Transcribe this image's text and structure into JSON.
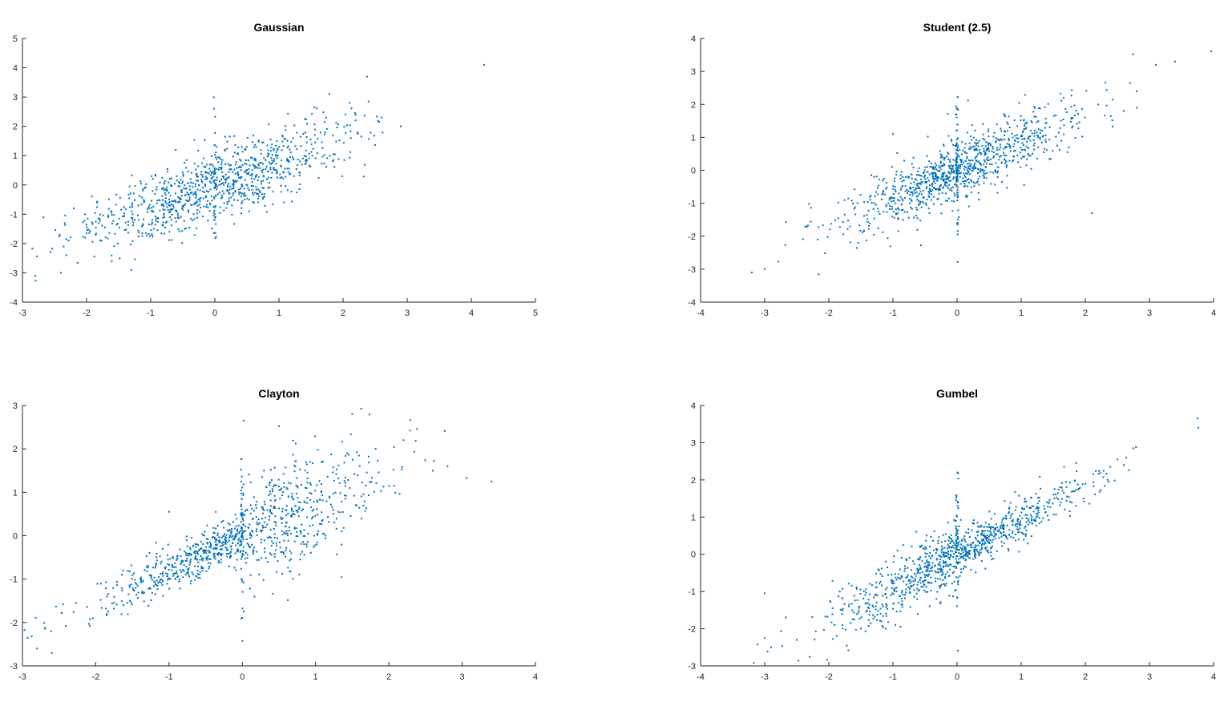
{
  "chart_data": [
    {
      "type": "scatter",
      "title": "Gaussian",
      "xlim": [
        -3,
        5
      ],
      "ylim": [
        -4,
        5
      ],
      "xticks": [
        -3,
        -2,
        -1,
        0,
        1,
        2,
        3,
        4,
        5
      ],
      "yticks": [
        -4,
        -3,
        -2,
        -1,
        0,
        1,
        2,
        3,
        4,
        5
      ],
      "color": "#0072BD",
      "grid": false,
      "rho": 0.8,
      "n": 1000,
      "seed": 11,
      "outliers": [
        [
          4.2,
          4.1
        ],
        [
          2.9,
          2.0
        ],
        [
          2.6,
          2.3
        ],
        [
          -2.8,
          -3.1
        ],
        [
          -2.4,
          -3.0
        ],
        [
          -2.2,
          -0.8
        ],
        [
          -1.3,
          -2.9
        ],
        [
          2.1,
          2.8
        ]
      ]
    },
    {
      "type": "scatter",
      "title": "Student (2.5)",
      "xlim": [
        -4,
        4
      ],
      "ylim": [
        -4,
        4
      ],
      "xticks": [
        -4,
        -3,
        -2,
        -1,
        0,
        1,
        2,
        3,
        4
      ],
      "yticks": [
        -4,
        -3,
        -2,
        -1,
        0,
        1,
        2,
        3,
        4
      ],
      "color": "#0072BD",
      "grid": false,
      "rho": 0.85,
      "n": 1000,
      "seed": 23,
      "outliers": [
        [
          3.4,
          3.3
        ],
        [
          3.1,
          3.2
        ],
        [
          2.8,
          2.4
        ],
        [
          -3.2,
          -3.1
        ],
        [
          -3.0,
          -3.0
        ],
        [
          2.1,
          -1.3
        ],
        [
          -1.0,
          1.1
        ],
        [
          2.6,
          1.8
        ]
      ]
    },
    {
      "type": "scatter",
      "title": "Clayton",
      "xlim": [
        -3,
        4
      ],
      "ylim": [
        -3,
        3
      ],
      "xticks": [
        -3,
        -2,
        -1,
        0,
        1,
        2,
        3,
        4
      ],
      "yticks": [
        -3,
        -2,
        -1,
        0,
        1,
        2,
        3
      ],
      "color": "#0072BD",
      "grid": false,
      "rho": 0.75,
      "n": 1000,
      "seed": 37,
      "outliers": [
        [
          3.4,
          1.25
        ],
        [
          2.8,
          1.6
        ],
        [
          2.6,
          1.5
        ],
        [
          1.5,
          2.8
        ],
        [
          -2.8,
          -2.6
        ],
        [
          -2.6,
          -2.7
        ],
        [
          -1.0,
          0.55
        ],
        [
          2.2,
          2.2
        ]
      ]
    },
    {
      "type": "scatter",
      "title": "Gumbel",
      "xlim": [
        -4,
        4
      ],
      "ylim": [
        -3,
        4
      ],
      "xticks": [
        -4,
        -3,
        -2,
        -1,
        0,
        1,
        2,
        3,
        4
      ],
      "yticks": [
        -3,
        -2,
        -1,
        0,
        1,
        2,
        3,
        4
      ],
      "color": "#0072BD",
      "grid": false,
      "rho": 0.9,
      "n": 1000,
      "seed": 51,
      "outliers": [
        [
          3.75,
          3.65
        ],
        [
          2.75,
          2.85
        ],
        [
          -3.0,
          -1.05
        ],
        [
          -2.9,
          -2.5
        ],
        [
          -3.0,
          -2.25
        ],
        [
          2.5,
          2.55
        ],
        [
          2.6,
          2.4
        ],
        [
          -2.5,
          -2.3
        ]
      ]
    }
  ]
}
